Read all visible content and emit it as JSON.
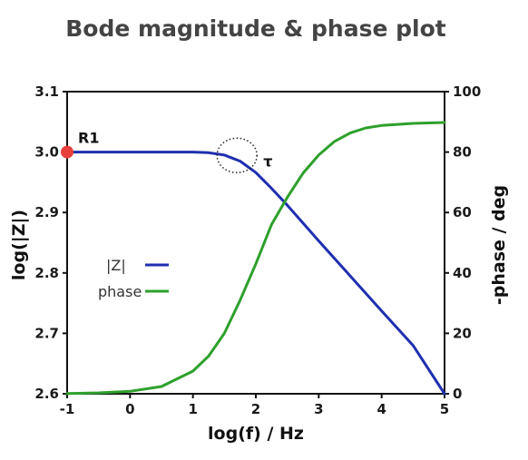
{
  "chart_data": {
    "type": "line",
    "title": "Bode magnitude & phase plot",
    "xlabel": "log(f) / Hz",
    "ylabel_left": "log(|Z|)",
    "ylabel_right": "-phase / deg",
    "xlim": [
      -1,
      5
    ],
    "ylim_left": [
      2.6,
      3.1
    ],
    "ylim_right": [
      0,
      100
    ],
    "x_ticks": [
      "-1",
      "0",
      "1",
      "2",
      "3",
      "4",
      "5"
    ],
    "y_left_ticks": [
      "2.6",
      "2.7",
      "2.8",
      "2.9",
      "3.0",
      "3.1"
    ],
    "y_right_ticks": [
      "0",
      "20",
      "40",
      "60",
      "80",
      "100"
    ],
    "grid": false,
    "legend_position": "center-left",
    "series": [
      {
        "name": "|Z|",
        "axis": "left",
        "color": "#1f2fb0",
        "x": [
          -1,
          -0.5,
          0,
          0.5,
          1,
          1.25,
          1.5,
          1.75,
          2,
          2.25,
          2.5,
          3,
          3.5,
          4,
          4.5,
          5
        ],
        "values": [
          3.0,
          3.0,
          3.0,
          3.0,
          3.0,
          2.999,
          2.995,
          2.985,
          2.966,
          2.94,
          2.912,
          2.853,
          2.795,
          2.737,
          2.68,
          2.6
        ]
      },
      {
        "name": "phase",
        "axis": "right",
        "color": "#2ea02c",
        "x": [
          -1,
          -0.5,
          0,
          0.5,
          1,
          1.25,
          1.5,
          1.75,
          2,
          2.25,
          2.5,
          2.75,
          3,
          3.25,
          3.5,
          3.75,
          4,
          4.5,
          5
        ],
        "values": [
          0.1,
          0.3,
          0.8,
          2.4,
          7.5,
          12.5,
          20,
          31,
          43,
          56,
          65,
          73,
          79,
          83.5,
          86.3,
          88,
          88.8,
          89.5,
          89.8
        ]
      }
    ],
    "annotations": [
      {
        "label": "R1",
        "x": -1,
        "y": 3.0,
        "marker": "point",
        "color": "#e8403b"
      },
      {
        "label": "τ",
        "x": 1.7,
        "y": 2.99,
        "marker": "dotted-circle"
      }
    ]
  }
}
